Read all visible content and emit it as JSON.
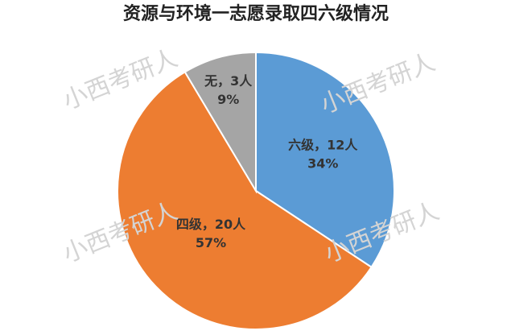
{
  "chart_data": {
    "type": "pie",
    "title": "资源与环境一志愿录取四六级情况",
    "values": [
      12,
      20,
      3
    ],
    "value_labels": [
      "六级，12人",
      "四级，20人",
      "无，3人"
    ],
    "percent_labels": [
      "34%",
      "57%",
      "9%"
    ],
    "colors": [
      "#5b9bd5",
      "#ed7d31",
      "#a5a5a5"
    ],
    "watermarks": [
      "小西考研人",
      "小西考研人",
      "小西考研人",
      "小西考研人"
    ]
  }
}
